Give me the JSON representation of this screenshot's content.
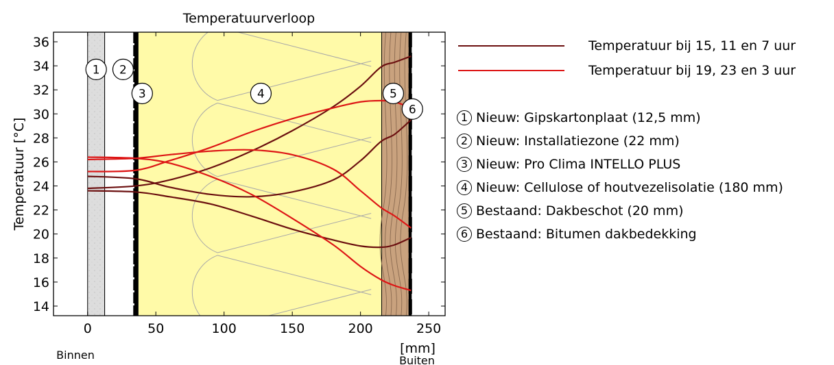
{
  "chart_data": {
    "type": "line",
    "title": "Temperatuurverloop",
    "xlabel": "[mm]",
    "ylabel": "Temperatuur [°C]",
    "xlim": [
      -25,
      262
    ],
    "ylim": [
      13.2,
      36.8
    ],
    "x_ticks": [
      0,
      50,
      100,
      150,
      200,
      250
    ],
    "y_ticks": [
      14,
      16,
      18,
      20,
      22,
      24,
      26,
      28,
      30,
      32,
      34,
      36
    ],
    "side_labels": {
      "inside": "Binnen",
      "outside": "Buiten"
    },
    "layers": [
      {
        "id": "1",
        "label": "Nieuw: Gipskartonplaat (12,5 mm)",
        "x0": 0,
        "x1": 12.5,
        "fill": "#dddddd"
      },
      {
        "id": "2",
        "label": "Nieuw: Installatiezone (22 mm)",
        "x0": 12.5,
        "x1": 34.5,
        "fill": "#ffffff"
      },
      {
        "id": "3",
        "label": "Nieuw: Pro Clima INTELLO PLUS",
        "x0": 34.5,
        "x1": 35.5,
        "fill": "#000000"
      },
      {
        "id": "4",
        "label": "Nieuw: Cellulose of houtvezelisolatie (180 mm)",
        "x0": 35.5,
        "x1": 215.5,
        "fill": "#fffaa8"
      },
      {
        "id": "5",
        "label": "Bestaand: Dakbeschot (20 mm)",
        "x0": 215.5,
        "x1": 235.5,
        "fill": "#c9a27e"
      },
      {
        "id": "6",
        "label": "Bestaand: Bitumen dakbedekking",
        "x0": 235.5,
        "x1": 237.5,
        "fill": "#000000"
      }
    ],
    "series": [
      {
        "name": "Temperatuur bij 15, 11 en 7 uur",
        "color": "#6b0f0f",
        "curves": [
          {
            "x": [
              0,
              35,
              60,
              90,
              120,
              150,
              180,
              200,
              215,
              225,
              237
            ],
            "y": [
              23.8,
              24.0,
              24.5,
              25.5,
              26.9,
              28.6,
              30.6,
              32.3,
              33.9,
              34.3,
              34.8
            ]
          },
          {
            "x": [
              0,
              35,
              60,
              90,
              120,
              150,
              180,
              200,
              215,
              225,
              237
            ],
            "y": [
              24.8,
              24.6,
              23.9,
              23.3,
              23.1,
              23.5,
              24.5,
              26.1,
              27.7,
              28.3,
              29.5
            ]
          },
          {
            "x": [
              0,
              35,
              60,
              90,
              120,
              150,
              180,
              200,
              215,
              225,
              237
            ],
            "y": [
              23.6,
              23.5,
              23.1,
              22.5,
              21.5,
              20.4,
              19.5,
              19.0,
              18.9,
              19.1,
              19.7
            ]
          }
        ]
      },
      {
        "name": "Temperatuur bij 19, 23 en 3 uur",
        "color": "#dd1515",
        "curves": [
          {
            "x": [
              0,
              35,
              60,
              90,
              120,
              150,
              180,
              200,
              215,
              225,
              237
            ],
            "y": [
              25.2,
              25.3,
              26.1,
              27.2,
              28.5,
              29.6,
              30.5,
              31.0,
              31.1,
              31.0,
              30.5
            ]
          },
          {
            "x": [
              0,
              35,
              60,
              90,
              120,
              150,
              180,
              200,
              215,
              225,
              237
            ],
            "y": [
              26.2,
              26.3,
              26.6,
              26.9,
              27.0,
              26.6,
              25.4,
              23.6,
              22.2,
              21.5,
              20.5
            ]
          },
          {
            "x": [
              0,
              35,
              60,
              90,
              120,
              150,
              180,
              200,
              215,
              225,
              237
            ],
            "y": [
              26.4,
              26.3,
              25.9,
              24.8,
              23.3,
              21.3,
              19.1,
              17.3,
              16.2,
              15.7,
              15.3
            ]
          }
        ]
      }
    ],
    "legend_position": "right"
  }
}
